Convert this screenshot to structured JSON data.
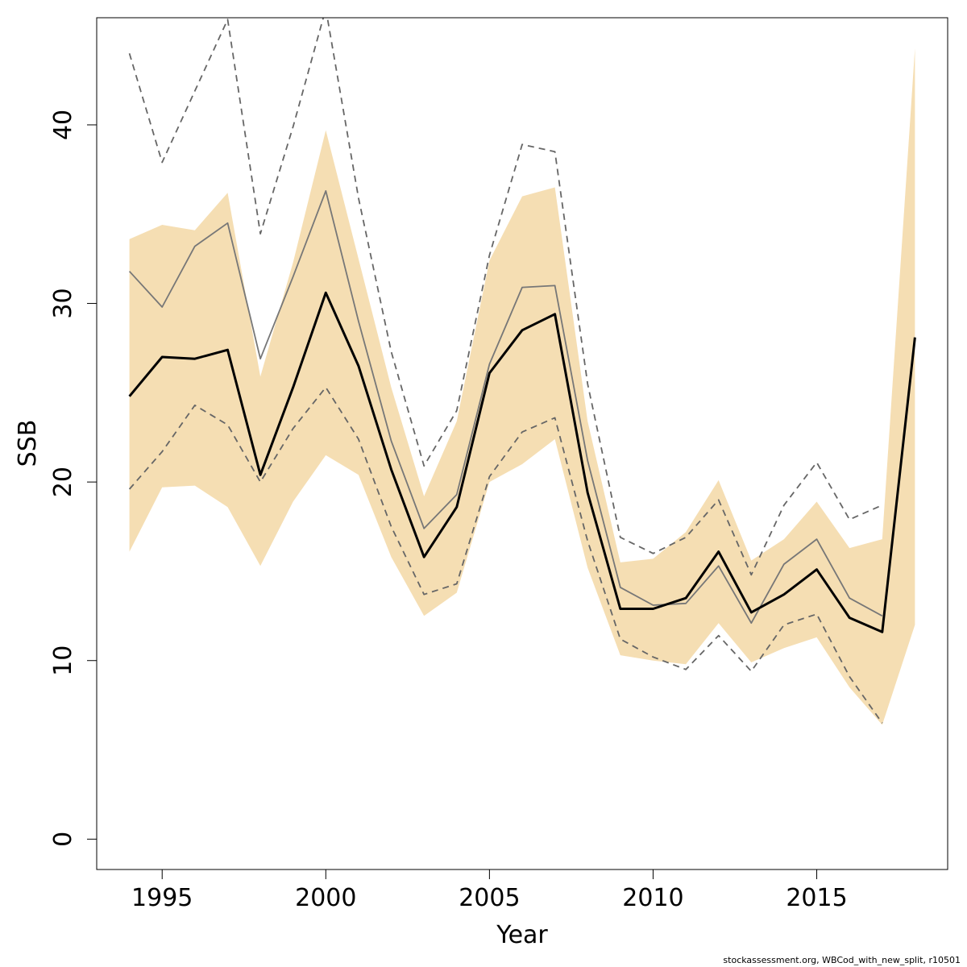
{
  "chart_data": {
    "type": "area",
    "xlabel": "Year",
    "ylabel": "SSB",
    "xlim": [
      1993,
      2019
    ],
    "ylim": [
      -1.7,
      46
    ],
    "x_ticks": [
      1995,
      2000,
      2005,
      2010,
      2015
    ],
    "y_ticks": [
      0,
      10,
      20,
      30,
      40
    ],
    "grid": false,
    "legend": "none",
    "colors": {
      "band": "#f5deb3",
      "estimate": "#000000",
      "previous": "#777777",
      "previous_ci": "#666666"
    },
    "band": {
      "x": [
        1994,
        1995,
        1996,
        1997,
        1998,
        1999,
        2000,
        2001,
        2002,
        2003,
        2004,
        2005,
        2006,
        2007,
        2008,
        2009,
        2010,
        2011,
        2012,
        2013,
        2014,
        2015,
        2016,
        2017,
        2018
      ],
      "lower": [
        16.1,
        19.7,
        19.8,
        18.6,
        15.3,
        18.9,
        21.5,
        20.4,
        15.8,
        12.5,
        13.8,
        20.0,
        21.0,
        22.4,
        15.2,
        10.3,
        10.0,
        9.8,
        12.1,
        9.9,
        10.7,
        11.3,
        8.5,
        6.4,
        12.0
      ],
      "upper": [
        33.6,
        34.4,
        34.1,
        36.2,
        25.9,
        32.3,
        39.7,
        32.5,
        25.3,
        19.2,
        23.4,
        32.4,
        36.0,
        36.5,
        23.4,
        15.5,
        15.7,
        17.2,
        20.1,
        15.6,
        16.8,
        18.9,
        16.3,
        16.8,
        44.3
      ]
    },
    "series": [
      {
        "x": [
          1994,
          1995,
          1996,
          1997,
          1998,
          1999,
          2000,
          2001,
          2002,
          2003,
          2004,
          2005,
          2006,
          2007,
          2008,
          2009,
          2010,
          2011,
          2012,
          2013,
          2014,
          2015,
          2016,
          2017,
          2018
        ],
        "values": [
          24.8,
          27.0,
          26.9,
          27.4,
          20.4,
          25.3,
          30.6,
          26.5,
          20.7,
          15.8,
          18.6,
          26.1,
          28.5,
          29.4,
          19.4,
          12.9,
          12.9,
          13.5,
          16.1,
          12.7,
          13.7,
          15.1,
          12.4,
          11.6,
          28.1
        ],
        "style": "solid-thick"
      },
      {
        "x": [
          1994,
          1995,
          1996,
          1997,
          1998,
          1999,
          2000,
          2001,
          2002,
          2003,
          2004,
          2005,
          2006,
          2007,
          2008,
          2009,
          2010,
          2011,
          2012,
          2013,
          2014,
          2015,
          2016,
          2017
        ],
        "values": [
          31.8,
          29.8,
          33.2,
          34.5,
          26.9,
          31.5,
          36.3,
          29.0,
          22.3,
          17.4,
          19.3,
          26.6,
          30.9,
          31.0,
          21.2,
          14.1,
          13.1,
          13.2,
          15.3,
          12.1,
          15.4,
          16.8,
          13.5,
          12.5
        ],
        "style": "solid-thin"
      },
      {
        "x": [
          1994,
          1995,
          1996,
          1997,
          1998,
          1999,
          2000,
          2001,
          2002,
          2003,
          2004,
          2005,
          2006,
          2007,
          2008,
          2009,
          2010,
          2011,
          2012,
          2013,
          2014,
          2015,
          2016,
          2017
        ],
        "values": [
          19.6,
          21.7,
          24.3,
          23.2,
          20.0,
          23.0,
          25.3,
          22.4,
          17.5,
          13.7,
          14.3,
          20.3,
          22.8,
          23.6,
          16.7,
          11.2,
          10.2,
          9.5,
          11.4,
          9.4,
          12.0,
          12.6,
          9.1,
          6.5
        ],
        "style": "dashed"
      },
      {
        "x": [
          1994,
          1995,
          1996,
          1997,
          1998,
          1999,
          2000,
          2001,
          2002,
          2003,
          2004,
          2005,
          2006,
          2007,
          2008,
          2009,
          2010,
          2011,
          2012,
          2013,
          2014,
          2015,
          2016,
          2017
        ],
        "values": [
          44.0,
          37.9,
          41.9,
          45.9,
          33.9,
          39.9,
          46.5,
          35.9,
          27.3,
          20.9,
          24.0,
          32.7,
          38.9,
          38.5,
          25.5,
          16.9,
          16.0,
          16.9,
          19.0,
          14.8,
          18.7,
          21.1,
          17.9,
          18.7
        ],
        "style": "dashed"
      }
    ]
  },
  "footer": "stockassessment.org, WBCod_with_new_split, r10501"
}
